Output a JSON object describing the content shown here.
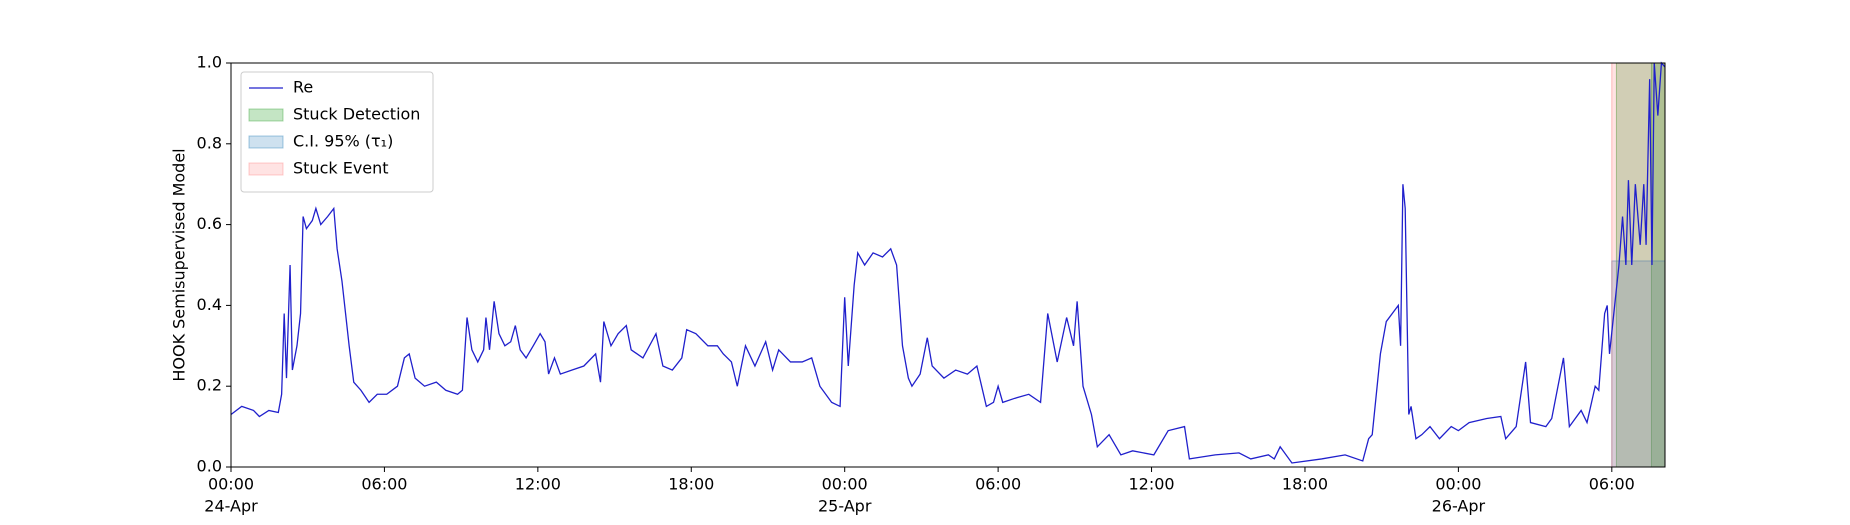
{
  "chart_data": {
    "type": "line",
    "ylabel": "HOOK Semisupervised Model",
    "x": [
      0,
      0.42,
      0.88,
      1.11,
      1.48,
      1.85,
      1.98,
      2.08,
      2.17,
      2.31,
      2.4,
      2.58,
      2.72,
      2.82,
      2.95,
      3.18,
      3.32,
      3.51,
      3.78,
      4.02,
      4.15,
      4.34,
      4.48,
      4.62,
      4.8,
      5.08,
      5.4,
      5.72,
      6.09,
      6.51,
      6.78,
      6.97,
      7.2,
      7.57,
      8.03,
      8.4,
      8.86,
      9.05,
      9.23,
      9.42,
      9.65,
      9.88,
      9.97,
      10.11,
      10.29,
      10.48,
      10.71,
      10.94,
      11.12,
      11.31,
      11.54,
      11.82,
      12.09,
      12.28,
      12.42,
      12.65,
      12.88,
      13.34,
      13.8,
      14.26,
      14.45,
      14.58,
      14.86,
      15.14,
      15.46,
      15.65,
      16.11,
      16.62,
      16.89,
      17.26,
      17.63,
      17.82,
      18.18,
      18.65,
      19.02,
      19.25,
      19.57,
      19.8,
      20.12,
      20.49,
      20.91,
      21.18,
      21.42,
      21.88,
      22.34,
      22.71,
      23.03,
      23.49,
      23.82,
      24.0,
      24.14,
      24.37,
      24.51,
      24.78,
      25.11,
      25.48,
      25.8,
      26.03,
      26.26,
      26.49,
      26.63,
      26.95,
      27.23,
      27.42,
      27.88,
      28.34,
      28.8,
      29.17,
      29.54,
      29.82,
      30.0,
      30.18,
      30.65,
      31.2,
      31.66,
      31.94,
      32.31,
      32.68,
      32.95,
      33.09,
      33.32,
      33.65,
      33.88,
      34.34,
      34.8,
      35.26,
      36.09,
      36.65,
      37.29,
      37.48,
      38.49,
      39.42,
      39.88,
      40.57,
      40.8,
      41.03,
      41.49,
      42.65,
      43.57,
      44.26,
      44.49,
      44.63,
      44.95,
      45.18,
      45.65,
      45.74,
      45.83,
      45.92,
      46.06,
      46.15,
      46.34,
      46.57,
      46.89,
      47.26,
      47.72,
      48.0,
      48.42,
      49.11,
      49.66,
      49.85,
      50.26,
      50.63,
      50.82,
      51.42,
      51.65,
      52.11,
      52.34,
      52.8,
      53.03,
      53.35,
      53.49,
      53.72,
      53.82,
      53.91,
      54.28,
      54.42,
      54.55,
      54.65,
      54.78,
      54.92,
      55.11,
      55.25,
      55.34,
      55.48,
      55.57,
      55.66,
      55.8,
      55.94,
      56.08
    ],
    "series": [
      {
        "name": "Re",
        "color": "#2020cc",
        "values": [
          0.13,
          0.15,
          0.14,
          0.125,
          0.14,
          0.135,
          0.18,
          0.38,
          0.22,
          0.5,
          0.24,
          0.3,
          0.38,
          0.62,
          0.59,
          0.61,
          0.64,
          0.6,
          0.62,
          0.64,
          0.54,
          0.46,
          0.38,
          0.3,
          0.21,
          0.19,
          0.16,
          0.18,
          0.18,
          0.2,
          0.27,
          0.28,
          0.22,
          0.2,
          0.21,
          0.19,
          0.18,
          0.19,
          0.37,
          0.29,
          0.26,
          0.29,
          0.37,
          0.29,
          0.41,
          0.33,
          0.3,
          0.31,
          0.35,
          0.29,
          0.27,
          0.3,
          0.33,
          0.31,
          0.23,
          0.27,
          0.23,
          0.24,
          0.25,
          0.28,
          0.21,
          0.36,
          0.3,
          0.33,
          0.35,
          0.29,
          0.27,
          0.33,
          0.25,
          0.24,
          0.27,
          0.34,
          0.33,
          0.3,
          0.3,
          0.28,
          0.26,
          0.2,
          0.3,
          0.25,
          0.31,
          0.24,
          0.29,
          0.26,
          0.26,
          0.27,
          0.2,
          0.16,
          0.15,
          0.42,
          0.25,
          0.45,
          0.53,
          0.5,
          0.53,
          0.52,
          0.54,
          0.5,
          0.3,
          0.22,
          0.2,
          0.23,
          0.32,
          0.25,
          0.22,
          0.24,
          0.23,
          0.25,
          0.15,
          0.16,
          0.2,
          0.16,
          0.17,
          0.18,
          0.16,
          0.38,
          0.26,
          0.37,
          0.3,
          0.41,
          0.2,
          0.13,
          0.05,
          0.08,
          0.03,
          0.04,
          0.03,
          0.09,
          0.1,
          0.02,
          0.03,
          0.035,
          0.02,
          0.03,
          0.02,
          0.05,
          0.01,
          0.02,
          0.03,
          0.015,
          0.07,
          0.08,
          0.28,
          0.36,
          0.4,
          0.3,
          0.7,
          0.64,
          0.13,
          0.15,
          0.07,
          0.08,
          0.1,
          0.07,
          0.1,
          0.09,
          0.11,
          0.12,
          0.125,
          0.07,
          0.1,
          0.26,
          0.11,
          0.1,
          0.12,
          0.27,
          0.1,
          0.14,
          0.11,
          0.2,
          0.19,
          0.38,
          0.4,
          0.28,
          0.5,
          0.62,
          0.5,
          0.71,
          0.5,
          0.7,
          0.55,
          0.7,
          0.55,
          0.96,
          0.5,
          1.0,
          0.87,
          1.0,
          0.99
        ]
      }
    ],
    "regions": [
      {
        "name": "Stuck Detection",
        "color": "#2ca02c",
        "alpha": 0.28,
        "ylim": [
          0,
          1.0
        ],
        "xranges": [
          [
            54.18,
            56.08
          ],
          [
            55.55,
            56.08
          ]
        ]
      },
      {
        "name": "C.I. 95% (τ₁)",
        "color": "#1f77b4",
        "alpha": 0.22,
        "ylim": [
          0,
          0.51
        ],
        "xranges": [
          [
            54.0,
            56.08
          ]
        ]
      },
      {
        "name": "Stuck Event",
        "color": "#ff8080",
        "alpha": 0.22,
        "ylim": [
          0,
          1.0
        ],
        "xranges": [
          [
            54.0,
            56.08
          ]
        ]
      }
    ],
    "xlim": [
      0,
      56.08
    ],
    "ylim": [
      0,
      1.0
    ],
    "xticks": [
      {
        "value": 0,
        "label": "00:00"
      },
      {
        "value": 6,
        "label": "06:00"
      },
      {
        "value": 12,
        "label": "12:00"
      },
      {
        "value": 18,
        "label": "18:00"
      },
      {
        "value": 24,
        "label": "00:00"
      },
      {
        "value": 30,
        "label": "06:00"
      },
      {
        "value": 36,
        "label": "12:00"
      },
      {
        "value": 42,
        "label": "18:00"
      },
      {
        "value": 48,
        "label": "00:00"
      },
      {
        "value": 54,
        "label": "06:00"
      }
    ],
    "date_labels": [
      {
        "value": 0,
        "label": "24-Apr"
      },
      {
        "value": 24,
        "label": "25-Apr"
      },
      {
        "value": 48,
        "label": "26-Apr"
      }
    ],
    "yticks": [
      {
        "value": 0,
        "label": "0.0"
      },
      0.2,
      0.4,
      0.6,
      0.8,
      {
        "value": 1.0,
        "label": "1.0"
      }
    ],
    "legend": "upper left"
  }
}
